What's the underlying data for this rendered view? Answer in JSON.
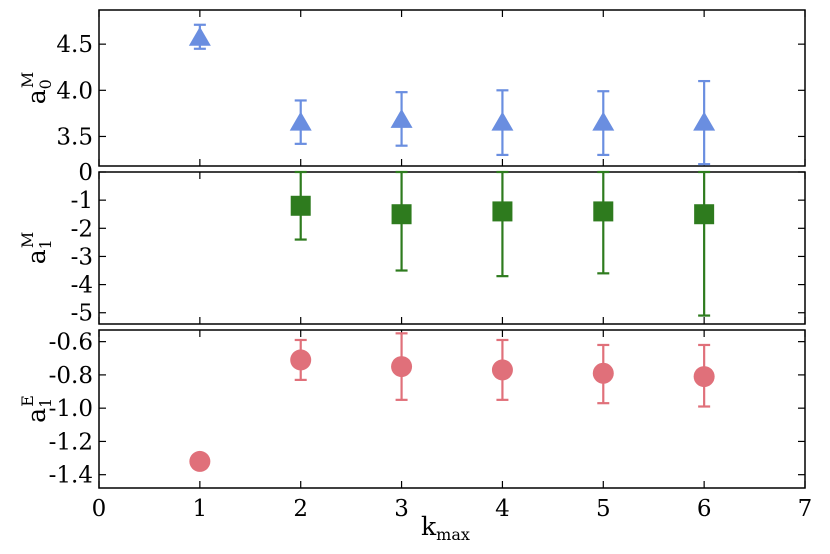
{
  "chart_data": {
    "type": "scatter",
    "x_ticks": [
      "0",
      "1",
      "2",
      "3",
      "4",
      "5",
      "6",
      "7"
    ],
    "xlim": [
      0,
      7
    ],
    "xlabel": {
      "base": "k",
      "sub": "max"
    },
    "grid": false,
    "panels": [
      {
        "ylabel": {
          "base": "a",
          "sub": "0",
          "sup": "M"
        },
        "ylim": [
          3.18,
          4.87
        ],
        "y_ticks": [
          {
            "value": 3.5,
            "label": "3.5"
          },
          {
            "value": 4.0,
            "label": "4.0"
          },
          {
            "value": 4.5,
            "label": "4.5"
          }
        ],
        "marker": "triangle",
        "color": "#6a8ee0",
        "points": [
          {
            "x": 1,
            "y": 4.57,
            "err_low": 4.45,
            "err_high": 4.71
          },
          {
            "x": 2,
            "y": 3.65,
            "err_low": 3.42,
            "err_high": 3.89
          },
          {
            "x": 3,
            "y": 3.68,
            "err_low": 3.4,
            "err_high": 3.98
          },
          {
            "x": 4,
            "y": 3.65,
            "err_low": 3.3,
            "err_high": 4.0
          },
          {
            "x": 5,
            "y": 3.65,
            "err_low": 3.3,
            "err_high": 3.99
          },
          {
            "x": 6,
            "y": 3.65,
            "err_low": 3.2,
            "err_high": 4.1
          }
        ]
      },
      {
        "ylabel": {
          "base": "a",
          "sub": "1",
          "sup": "M"
        },
        "ylim": [
          -5.4,
          0
        ],
        "y_ticks": [
          {
            "value": 0,
            "label": "0"
          },
          {
            "value": -1,
            "label": "-1"
          },
          {
            "value": -2,
            "label": "-2"
          },
          {
            "value": -3,
            "label": "-3"
          },
          {
            "value": -4,
            "label": "-4"
          },
          {
            "value": -5,
            "label": "-5"
          }
        ],
        "marker": "square",
        "color": "#2e7b1e",
        "points": [
          {
            "x": 2,
            "y": -1.2,
            "err_low": -2.4,
            "err_high": 0
          },
          {
            "x": 3,
            "y": -1.5,
            "err_low": -3.5,
            "err_high": 0
          },
          {
            "x": 4,
            "y": -1.4,
            "err_low": -3.7,
            "err_high": 0
          },
          {
            "x": 5,
            "y": -1.4,
            "err_low": -3.6,
            "err_high": 0
          },
          {
            "x": 6,
            "y": -1.5,
            "err_low": -5.1,
            "err_high": 0
          }
        ]
      },
      {
        "ylabel": {
          "base": "a",
          "sub": "1",
          "sup": "E"
        },
        "ylim": [
          -1.48,
          -0.53
        ],
        "y_ticks": [
          {
            "value": -0.6,
            "label": "-0.6"
          },
          {
            "value": -0.8,
            "label": "-0.8"
          },
          {
            "value": -1.0,
            "label": "-1.0"
          },
          {
            "value": -1.2,
            "label": "-1.2"
          },
          {
            "value": -1.4,
            "label": "-1.4"
          }
        ],
        "marker": "circle",
        "color": "#e0707a",
        "points": [
          {
            "x": 1,
            "y": -1.32
          },
          {
            "x": 2,
            "y": -0.71,
            "err_low": -0.83,
            "err_high": -0.59
          },
          {
            "x": 3,
            "y": -0.75,
            "err_low": -0.95,
            "err_high": -0.55
          },
          {
            "x": 4,
            "y": -0.77,
            "err_low": -0.95,
            "err_high": -0.59
          },
          {
            "x": 5,
            "y": -0.79,
            "err_low": -0.97,
            "err_high": -0.62
          },
          {
            "x": 6,
            "y": -0.81,
            "err_low": -0.99,
            "err_high": -0.62
          }
        ]
      }
    ]
  }
}
